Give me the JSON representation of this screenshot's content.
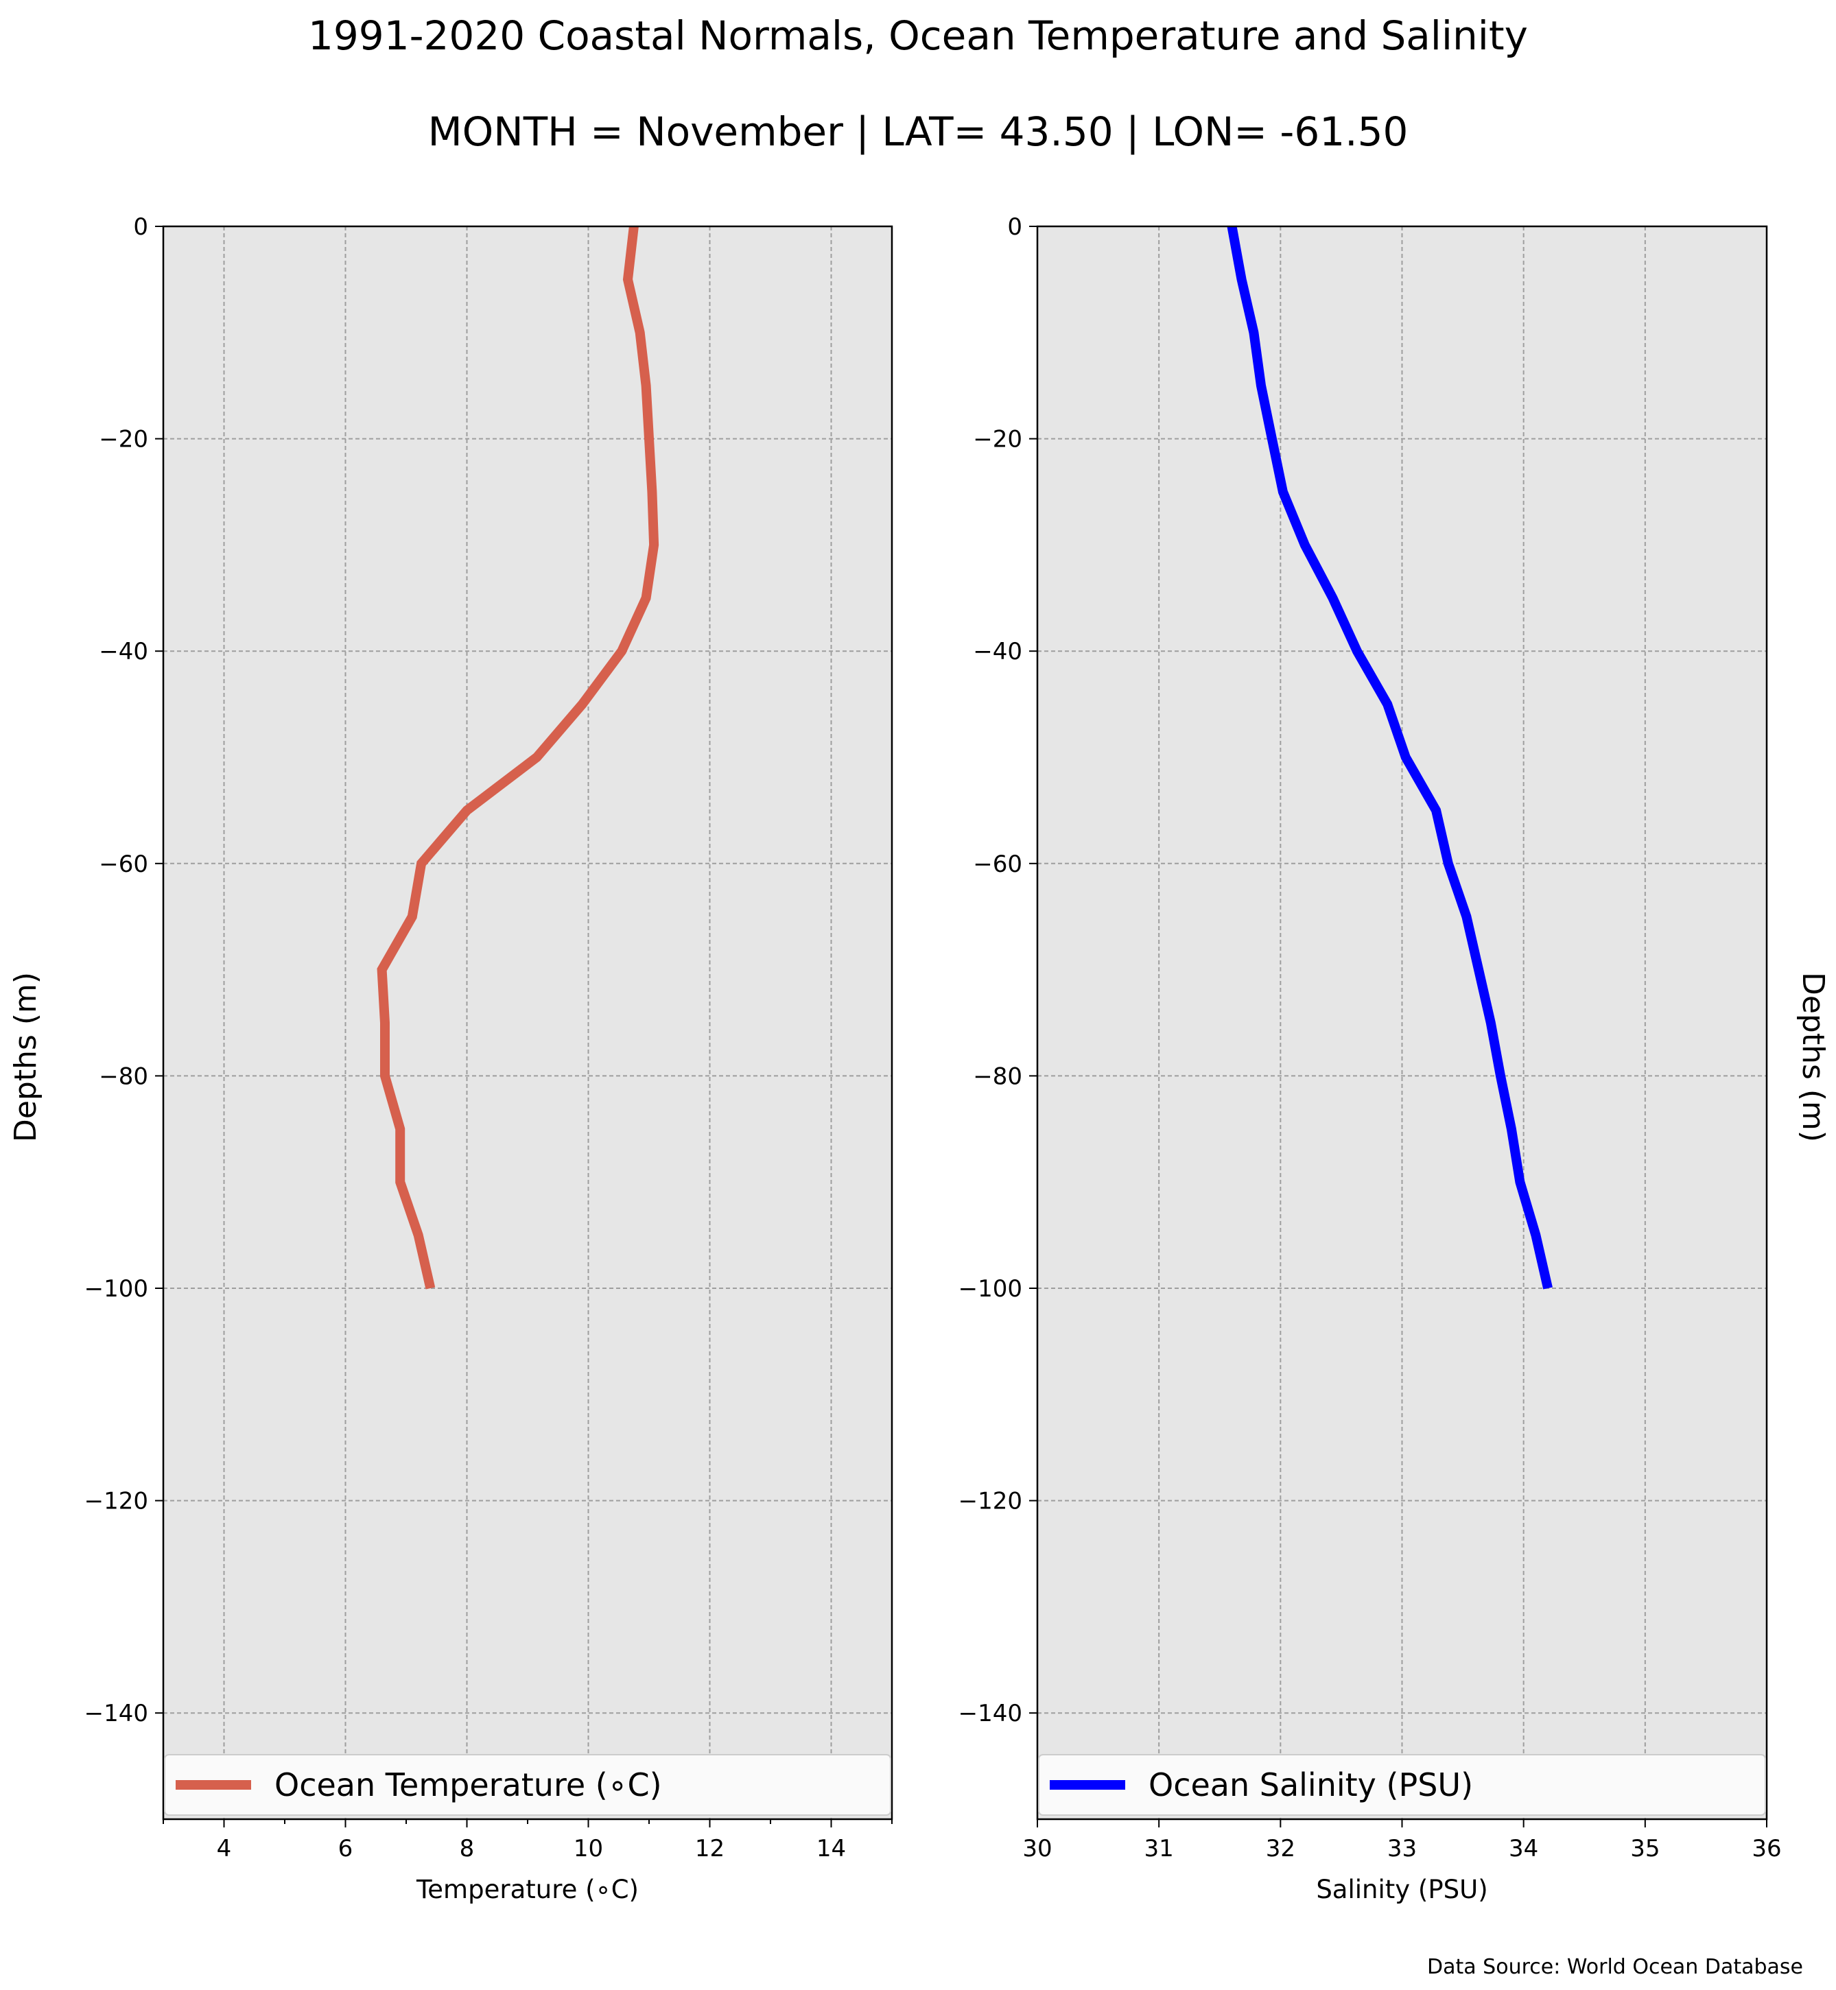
{
  "title": "1991-2020 Coastal Normals, Ocean Temperature and Salinity",
  "subtitle": "MONTH = November | LAT= 43.50 | LON= -61.50",
  "source_note": "Data Source: World Ocean Database",
  "chart_data": [
    {
      "type": "line",
      "xlabel": "Temperature (∘C)",
      "ylabel": "Depths (m)",
      "xlim": [
        3,
        15
      ],
      "ylim": [
        -150,
        0
      ],
      "xticks": [
        4,
        6,
        8,
        10,
        12,
        14
      ],
      "xtick_labels": [
        "4",
        "6",
        "8",
        "10",
        "12",
        "14"
      ],
      "xminor_ticks": [
        3,
        5,
        7,
        9,
        11,
        13,
        15
      ],
      "yticks": [
        0,
        -20,
        -40,
        -60,
        -80,
        -100,
        -120,
        -140
      ],
      "ytick_labels": [
        "0",
        "−20",
        "−40",
        "−60",
        "−80",
        "−100",
        "−120",
        "−140"
      ],
      "grid": true,
      "legend": "bottom",
      "background": "#e6e6e6",
      "series": [
        {
          "name": "Ocean Temperature (∘C)",
          "color": "#d6604d",
          "x": [
            10.75,
            10.65,
            10.85,
            10.95,
            11.0,
            11.05,
            11.08,
            10.95,
            10.55,
            9.9,
            9.15,
            8.0,
            7.25,
            7.1,
            6.6,
            6.65,
            6.65,
            6.9,
            6.9,
            7.2,
            7.4
          ],
          "y": [
            0,
            -5,
            -10,
            -15,
            -20,
            -25,
            -30,
            -35,
            -40,
            -45,
            -50,
            -55,
            -60,
            -65,
            -70,
            -75,
            -80,
            -85,
            -90,
            -95,
            -100
          ]
        }
      ]
    },
    {
      "type": "line",
      "xlabel": "Salinity (PSU)",
      "ylabel": "Depths (m)",
      "xlim": [
        30,
        36
      ],
      "ylim": [
        -150,
        0
      ],
      "xticks": [
        30,
        31,
        32,
        33,
        34,
        35,
        36
      ],
      "xtick_labels": [
        "30",
        "31",
        "32",
        "33",
        "34",
        "35",
        "36"
      ],
      "yticks": [
        0,
        -20,
        -40,
        -60,
        -80,
        -100,
        -120,
        -140
      ],
      "ytick_labels": [
        "0",
        "−20",
        "−40",
        "−60",
        "−80",
        "−100",
        "−120",
        "−140"
      ],
      "grid": true,
      "legend": "bottom",
      "background": "#e6e6e6",
      "series": [
        {
          "name": "Ocean Salinity (PSU)",
          "color": "#0000ff",
          "x": [
            31.6,
            31.68,
            31.78,
            31.84,
            31.93,
            32.02,
            32.2,
            32.43,
            32.63,
            32.88,
            33.03,
            33.28,
            33.38,
            33.53,
            33.63,
            33.73,
            33.81,
            33.9,
            33.97,
            34.1,
            34.2
          ],
          "y": [
            0,
            -5,
            -10,
            -15,
            -20,
            -25,
            -30,
            -35,
            -40,
            -45,
            -50,
            -55,
            -60,
            -65,
            -70,
            -75,
            -80,
            -85,
            -90,
            -95,
            -100
          ]
        }
      ]
    }
  ]
}
